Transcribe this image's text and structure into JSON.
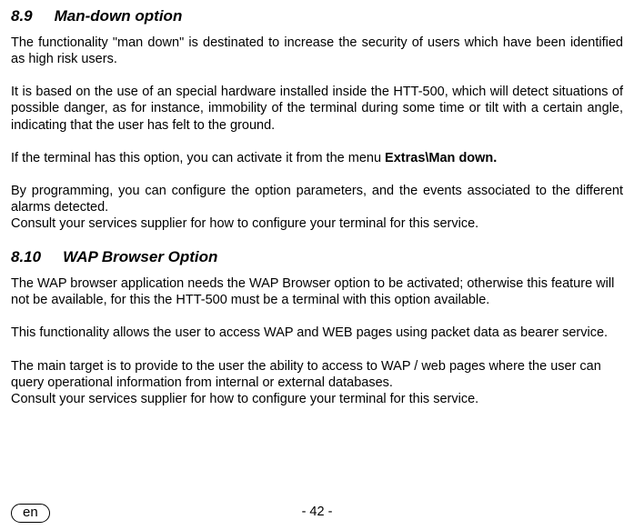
{
  "section_8_9": {
    "number": "8.9",
    "title": "Man-down option",
    "p1": "The functionality \"man down\" is destinated to increase the security of users which have been identified as high risk users.",
    "p2": "It is based on the use of an special hardware installed inside the HTT-500, which will detect situations of possible danger, as for instance, immobility of the terminal during some time or tilt with a certain angle, indicating that the user has felt to the ground.",
    "p3_pre": "If the terminal has this option, you can activate it from the menu ",
    "p3_bold": "Extras\\Man down.",
    "p4a": "By programming, you can configure the option parameters, and the events associated to the different alarms detected.",
    "p4b": "Consult your services supplier for how to configure your terminal for this service."
  },
  "section_8_10": {
    "number": "8.10",
    "title": "WAP Browser Option",
    "p1": "The WAP browser application needs the WAP Browser option to be activated; otherwise this feature will not be available, for this the HTT-500 must be a terminal with this option available.",
    "p2": "This functionality allows the user to access WAP and WEB pages using packet data as bearer service.",
    "p3a": "The main target is to provide to the user the ability to access to WAP / web pages where the user can query operational information from internal or external databases.",
    "p3b": "Consult your services supplier for how to configure your terminal for this service."
  },
  "footer": {
    "lang": "en",
    "page": "- 42 -"
  }
}
